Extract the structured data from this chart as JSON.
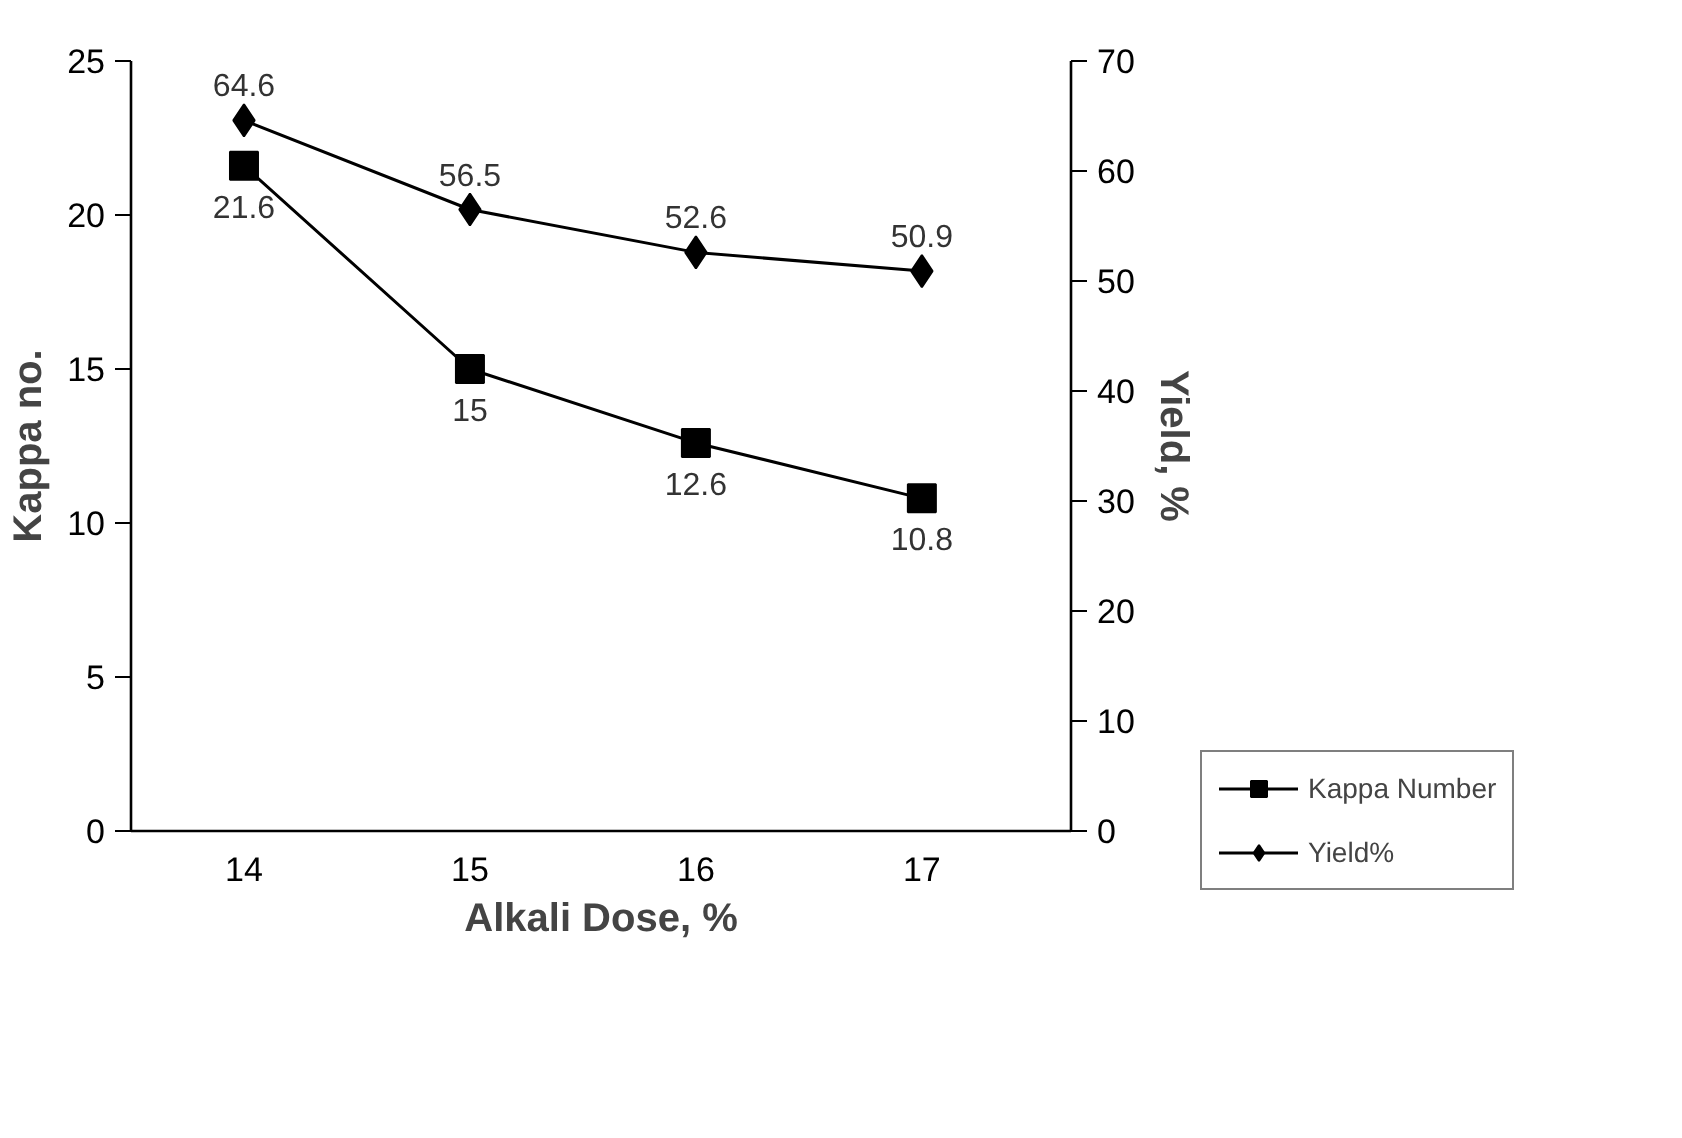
{
  "chart_data": {
    "type": "line",
    "xlabel": "Alkali Dose, %",
    "ylabel": "Kappa no.",
    "y2label": "Yield, %",
    "categories": [
      "14",
      "15",
      "16",
      "17"
    ],
    "series": [
      {
        "name": "Kappa Number",
        "color": "#000000",
        "marker": "square",
        "values": [
          21.6,
          15,
          12.6,
          10.8
        ]
      },
      {
        "name": "Yield%",
        "color": "#000000",
        "marker": "diamond",
        "axis": "y2",
        "values": [
          64.6,
          56.5,
          52.6,
          50.9
        ]
      }
    ],
    "ylim": [
      0,
      25
    ],
    "yticks": [
      0,
      5,
      10,
      15,
      20,
      25
    ],
    "y2lim": [
      0,
      70
    ],
    "y2ticks": [
      0,
      10,
      20,
      30,
      40,
      50,
      60,
      70
    ],
    "data_labels": true,
    "grid": false,
    "legend": "bottom right",
    "line_style": "solid"
  }
}
